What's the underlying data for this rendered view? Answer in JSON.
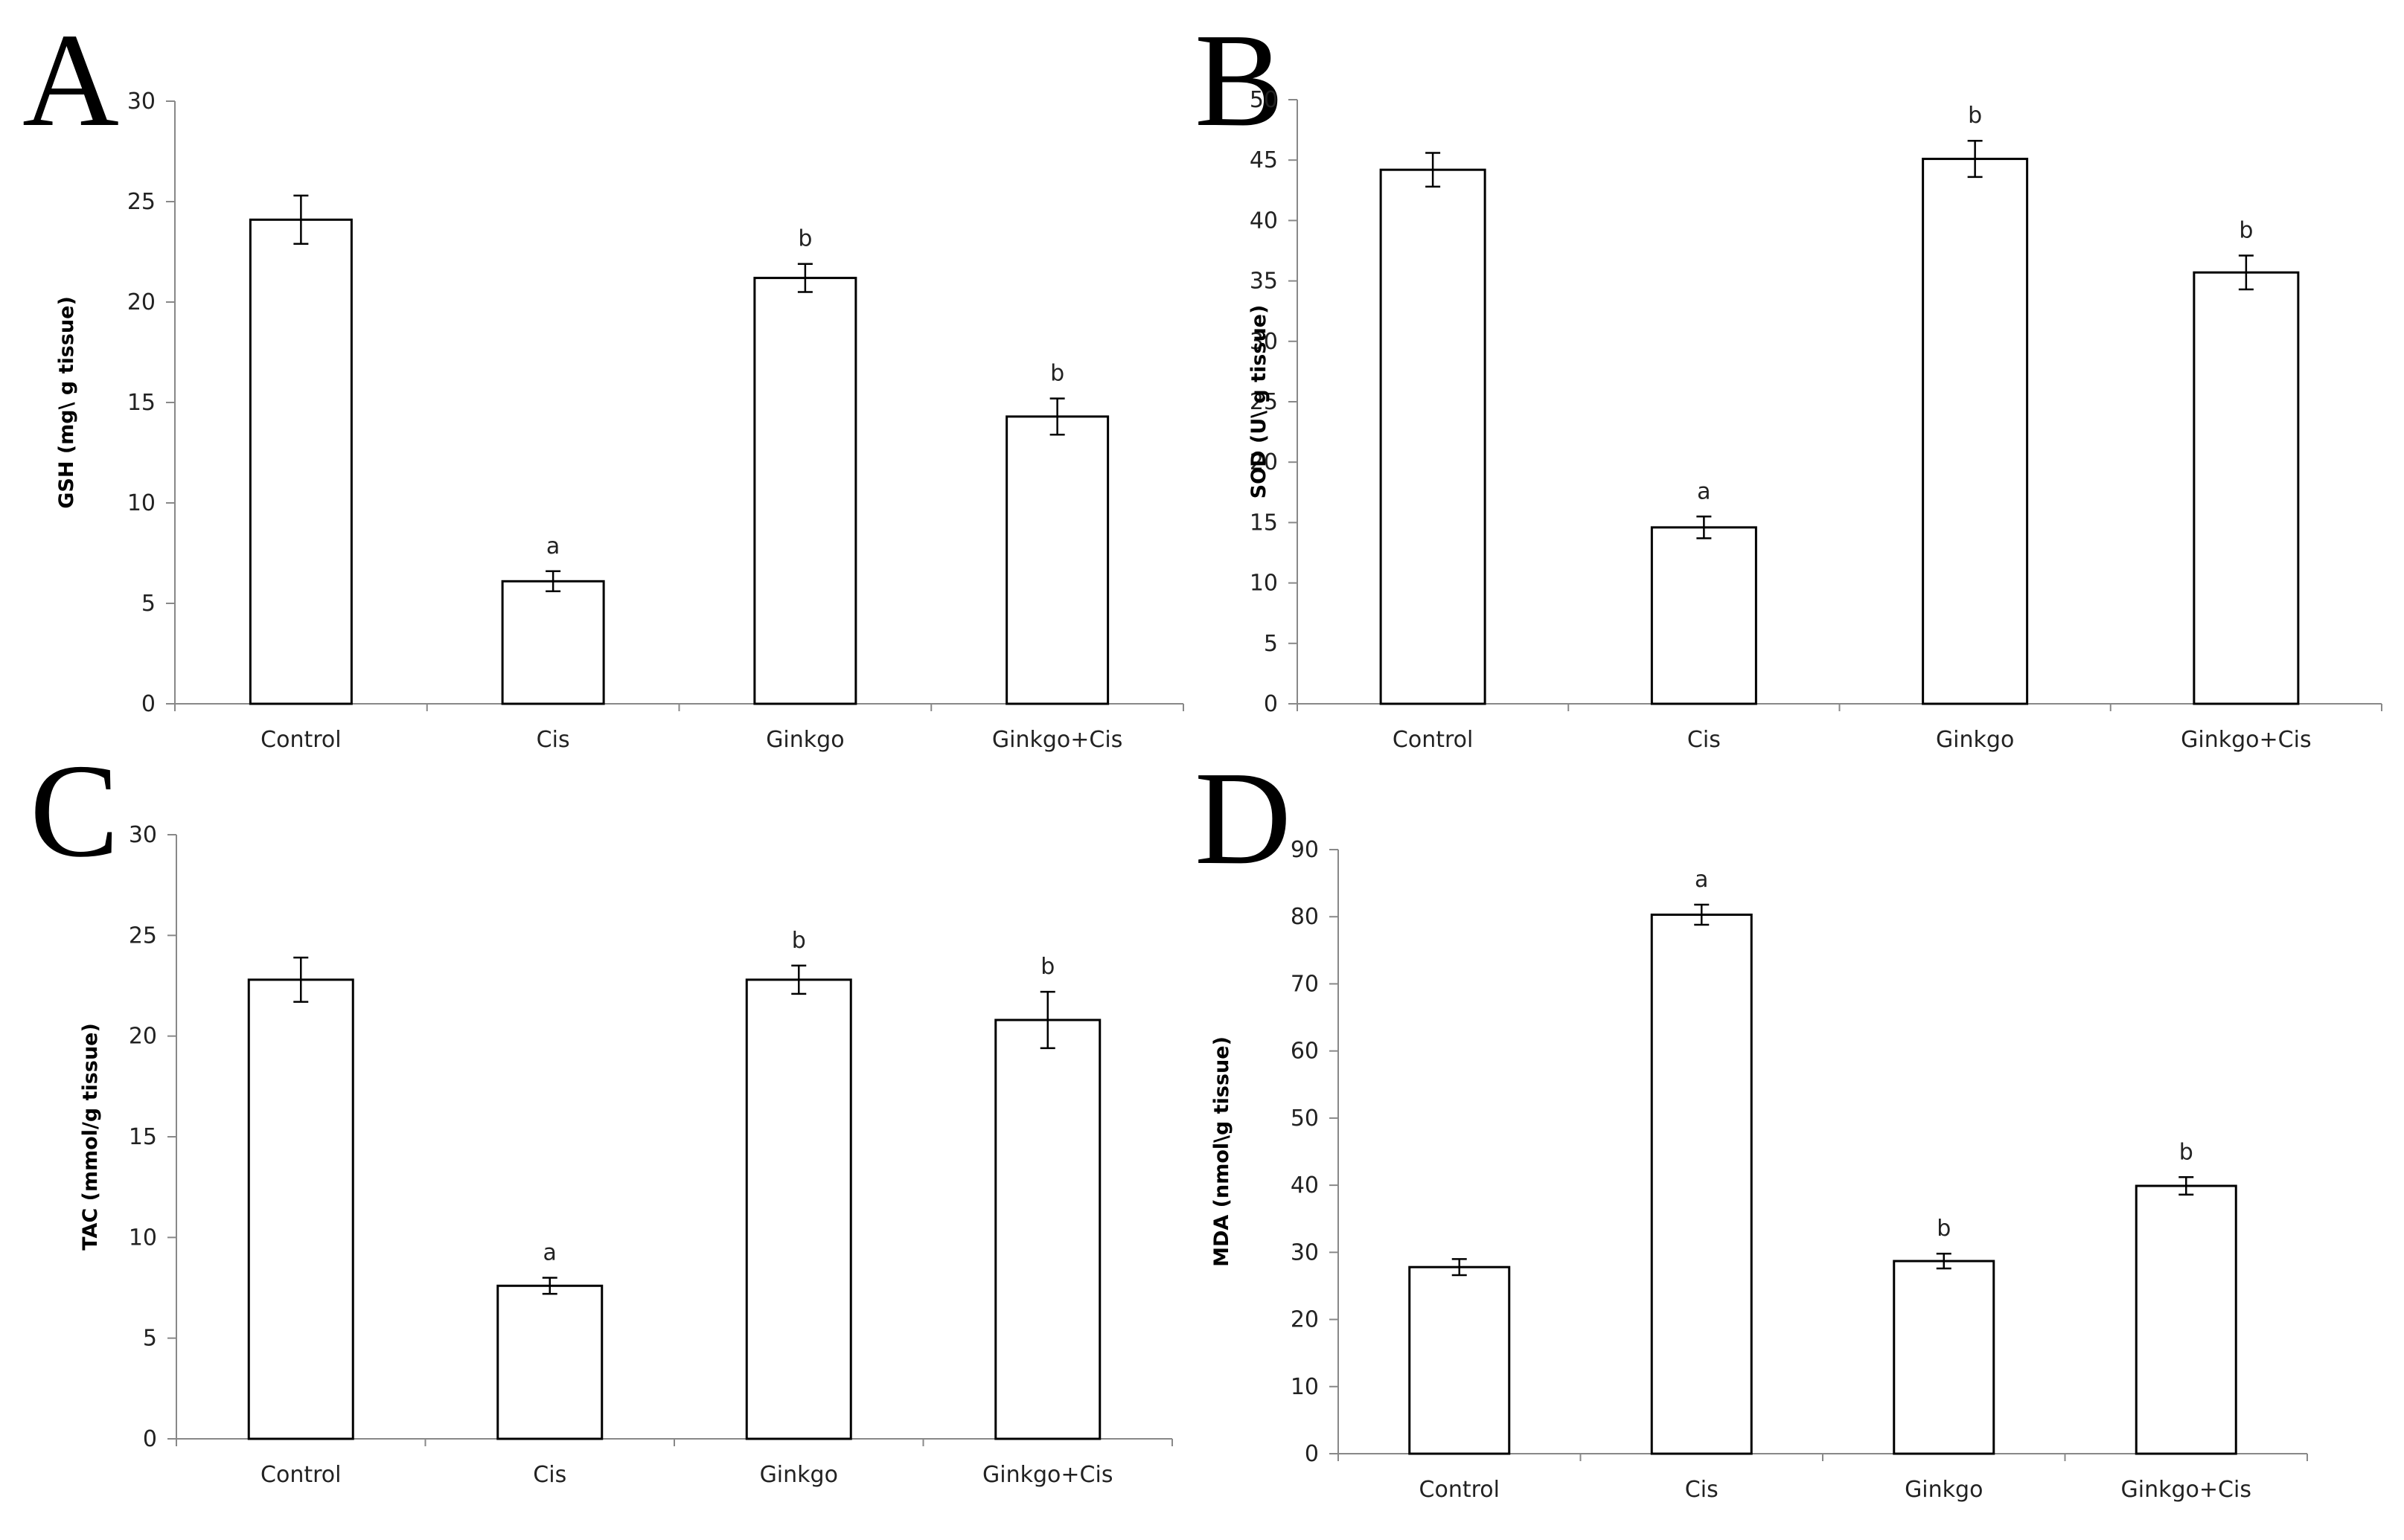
{
  "chart_data": [
    {
      "type": "bar",
      "panel": "A",
      "categories": [
        "Control",
        "Cis",
        "Ginkgo",
        "Ginkgo+Cis"
      ],
      "values": [
        24.1,
        6.1,
        21.2,
        14.3
      ],
      "errors": [
        1.2,
        0.5,
        0.7,
        0.9
      ],
      "significance": [
        "",
        "a",
        "b",
        "b"
      ],
      "ylabel": "GSH (mg\\ g tissue)",
      "xlabel": "",
      "ylim": [
        0,
        30
      ],
      "yticks": [
        0,
        5,
        10,
        15,
        20,
        25,
        30
      ]
    },
    {
      "type": "bar",
      "panel": "B",
      "categories": [
        "Control",
        "Cis",
        "Ginkgo",
        "Ginkgo+Cis"
      ],
      "values": [
        44.2,
        14.6,
        45.1,
        35.7
      ],
      "errors": [
        1.4,
        0.9,
        1.5,
        1.4
      ],
      "significance": [
        "",
        "a",
        "b",
        "b"
      ],
      "ylabel": "SOD (U\\ g tissue)",
      "xlabel": "",
      "ylim": [
        0,
        50
      ],
      "yticks": [
        0,
        5,
        10,
        15,
        20,
        25,
        30,
        35,
        40,
        45,
        50
      ]
    },
    {
      "type": "bar",
      "panel": "C",
      "categories": [
        "Control",
        "Cis",
        "Ginkgo",
        "Ginkgo+Cis"
      ],
      "values": [
        22.8,
        7.6,
        22.8,
        20.8
      ],
      "errors": [
        1.1,
        0.4,
        0.7,
        1.4
      ],
      "significance": [
        "",
        "a",
        "b",
        "b"
      ],
      "ylabel": "TAC (mmol/g tissue)",
      "xlabel": "",
      "ylim": [
        0,
        30
      ],
      "yticks": [
        0,
        5,
        10,
        15,
        20,
        25,
        30
      ]
    },
    {
      "type": "bar",
      "panel": "D",
      "categories": [
        "Control",
        "Cis",
        "Ginkgo",
        "Ginkgo+Cis"
      ],
      "values": [
        27.8,
        80.3,
        28.7,
        39.9
      ],
      "errors": [
        1.2,
        1.5,
        1.1,
        1.3
      ],
      "significance": [
        "",
        "a",
        "b",
        "b"
      ],
      "ylabel": "MDA (nmol\\g tissue)",
      "xlabel": "",
      "ylim": [
        0,
        90
      ],
      "yticks": [
        0,
        10,
        20,
        30,
        40,
        50,
        60,
        70,
        80,
        90
      ]
    }
  ]
}
